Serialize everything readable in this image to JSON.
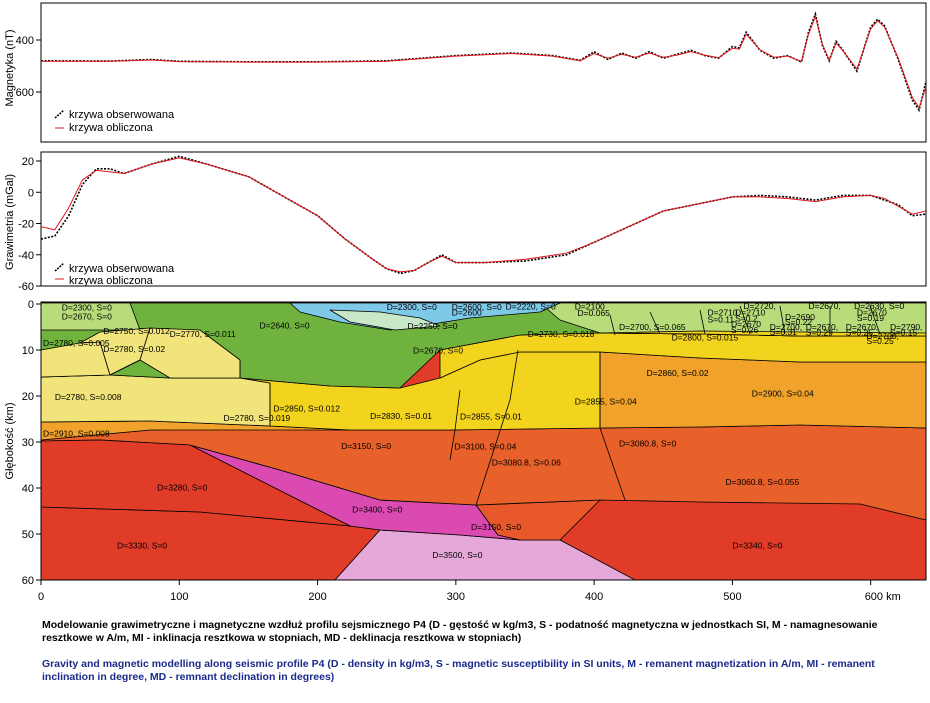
{
  "colors": {
    "observed": "#000000",
    "computed": "#e0141e",
    "caption_pl": "#000000",
    "caption_en": "#1a2a8a"
  },
  "panel_magnetic": {
    "ylabel": "Magnetyka (nT)",
    "yticks": [
      "400",
      "600"
    ],
    "legend": {
      "observed": "krzywa obserwowana",
      "computed": "krzywa obliczona"
    }
  },
  "panel_gravity": {
    "ylabel": "Grawimetria (mGal)",
    "yticks": [
      "20",
      "0",
      "-20",
      "-40",
      "-60"
    ],
    "legend": {
      "observed": "krzywa obserwowana",
      "computed": "krzywa obliczona"
    }
  },
  "panel_section": {
    "ylabel": "Głębokość (km)",
    "yticks": [
      "0",
      "10",
      "20",
      "30",
      "40",
      "50",
      "60"
    ],
    "xticks": [
      "0",
      "100",
      "200",
      "300",
      "400",
      "500",
      "600 km"
    ]
  },
  "chart_data": [
    {
      "type": "line",
      "ylabel": "Magnetyka (nT)",
      "x_range_km": [
        0,
        640
      ],
      "ylim": [
        290,
        700
      ],
      "y_inverted": true,
      "series": [
        {
          "name": "krzywa obserwowana",
          "x": [
            0,
            50,
            80,
            100,
            150,
            200,
            250,
            300,
            340,
            370,
            390,
            400,
            410,
            420,
            430,
            440,
            450,
            460,
            470,
            480,
            490,
            500,
            505,
            510,
            520,
            530,
            540,
            550,
            555,
            560,
            565,
            570,
            575,
            580,
            590,
            600,
            605,
            610,
            620,
            630,
            635,
            640
          ],
          "y": [
            480,
            481,
            475,
            482,
            484,
            484,
            480,
            460,
            450,
            460,
            478,
            445,
            475,
            450,
            470,
            445,
            470,
            455,
            440,
            460,
            470,
            425,
            430,
            370,
            440,
            470,
            460,
            485,
            370,
            300,
            420,
            480,
            405,
            440,
            520,
            350,
            320,
            345,
            475,
            630,
            670,
            560
          ]
        },
        {
          "name": "krzywa obliczona",
          "x": [
            0,
            50,
            80,
            100,
            150,
            200,
            250,
            300,
            340,
            370,
            390,
            400,
            410,
            420,
            430,
            440,
            450,
            460,
            470,
            480,
            490,
            500,
            505,
            510,
            520,
            530,
            540,
            550,
            555,
            560,
            565,
            570,
            575,
            580,
            590,
            600,
            605,
            610,
            620,
            630,
            635,
            640
          ],
          "y": [
            482,
            482,
            477,
            483,
            485,
            485,
            482,
            462,
            452,
            462,
            480,
            452,
            470,
            455,
            466,
            450,
            466,
            458,
            445,
            458,
            468,
            432,
            435,
            378,
            438,
            466,
            462,
            482,
            378,
            310,
            415,
            476,
            412,
            442,
            512,
            358,
            326,
            350,
            470,
            620,
            660,
            580
          ]
        }
      ]
    },
    {
      "type": "line",
      "ylabel": "Grawimetria (mGal)",
      "x_range_km": [
        0,
        640
      ],
      "ylim": [
        -60,
        25
      ],
      "series": [
        {
          "name": "krzywa obserwowana",
          "x": [
            0,
            10,
            20,
            30,
            40,
            50,
            60,
            80,
            100,
            120,
            150,
            180,
            200,
            220,
            240,
            250,
            260,
            270,
            280,
            290,
            300,
            320,
            350,
            380,
            400,
            450,
            500,
            520,
            540,
            560,
            580,
            600,
            610,
            620,
            630,
            640
          ],
          "y": [
            -30,
            -28,
            -15,
            5,
            15,
            15,
            12,
            18,
            23,
            18,
            10,
            -5,
            -15,
            -30,
            -43,
            -49,
            -52,
            -50,
            -45,
            -40,
            -45,
            -45,
            -44,
            -40,
            -32,
            -12,
            -3,
            -2,
            -3,
            -5,
            -2,
            -2,
            -5,
            -8,
            -15,
            -14
          ]
        },
        {
          "name": "krzywa obliczona",
          "x": [
            0,
            10,
            20,
            30,
            40,
            50,
            60,
            80,
            100,
            120,
            150,
            180,
            200,
            220,
            240,
            250,
            260,
            270,
            280,
            290,
            300,
            320,
            350,
            380,
            400,
            450,
            500,
            520,
            540,
            560,
            580,
            600,
            610,
            620,
            630,
            640
          ],
          "y": [
            -22,
            -24,
            -10,
            8,
            14,
            13,
            12,
            18,
            22,
            18,
            10,
            -5,
            -15,
            -30,
            -43,
            -49,
            -51,
            -50,
            -45,
            -41,
            -45,
            -45,
            -43,
            -39,
            -32,
            -12,
            -3,
            -3,
            -4,
            -6,
            -3,
            -2,
            -4,
            -9,
            -14,
            -12
          ]
        }
      ]
    },
    {
      "type": "table",
      "title": "",
      "xlabel": "km",
      "ylabel": "Głębokość (km)",
      "x_range_km": [
        0,
        640
      ],
      "depth_range_km": [
        0,
        60
      ],
      "bodies": [
        "D=2300, S=0",
        "D=2670, S=0",
        "D=2750, S=0.012",
        "D=2780, S=0.005",
        "D=2780, S=0.02",
        "D=2770, S=0.011",
        "D=2640, S=0",
        "D=2300, S=0",
        "D=2600, S=0",
        "D=2600",
        "D=2250, S=0",
        "D=2220, S=0",
        "D=2100",
        "D=2720,",
        "D=2670,",
        "D=2630, S=0",
        "D=0.065",
        "D=2700, S=0.065",
        "D=2710",
        "S=0.11",
        "D=2710",
        "S=0.2",
        "D=2670",
        "S=0.26",
        "D=2690",
        "S=0.22",
        "D=2670",
        "S=0.19",
        "D=2700,",
        "S=0.31",
        "D=2670,",
        "S=0.29",
        "D=2670,",
        "S=0.25",
        "D=2790,",
        "S=0.15",
        "D=2700,",
        "S=0.25",
        "D=2730, S=0.018",
        "D=2800, S=0.015",
        "D=2670, S=0",
        "D=2780, S=0.008",
        "D=2780, S=0.019",
        "D=2850, S=0.012",
        "D=2830, S=0.01",
        "D=2855, S=0.01",
        "D=2855, S=0.04",
        "D=2860, S=0.02",
        "D=2900, S=0.04",
        "D=2910, S=0.008",
        "D=3150, S=0",
        "D=3100, S=0.04",
        "D=3080.8, S=0.06",
        "D=3080.8, S=0",
        "D=3060.8, S=0.055",
        "D=3280, S=0",
        "D=3400, S=0",
        "D=3150, S=0",
        "D=3330, S=0",
        "D=3500, S=0",
        "D=3340, S=0"
      ]
    }
  ],
  "caption_pl": "Modelowanie grawimetryczne i magnetyczne wzdłuż profilu sejsmicznego P4 (D - gęstość w kg/m3, S - podatność magnetyczna w jednostkach SI, M - namagnesowanie resztkowe w A/m, MI - inklinacja resztkowa w stopniach, MD - deklinacja resztkowa w stopniach)",
  "caption_en": "Gravity and magnetic modelling along seismic profile P4 (D - density in kg/m3, S - magnetic susceptibility in SI units, M - remanent magnetization in A/m, MI - remanent inclination in degree, MD - remnant declination in degrees)"
}
